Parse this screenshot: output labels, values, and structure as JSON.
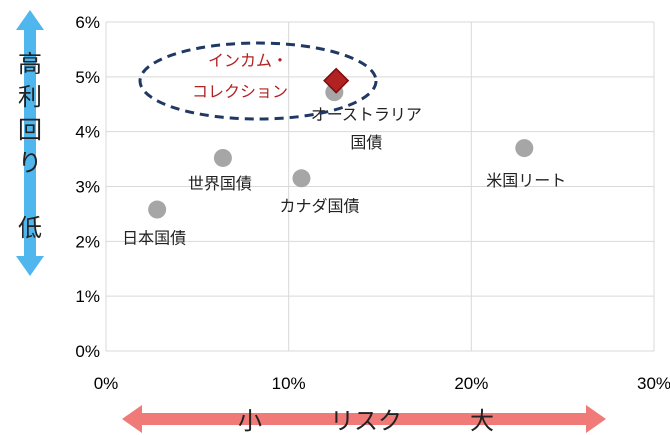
{
  "chart_data": {
    "type": "scatter",
    "title": "",
    "xlim": [
      0,
      30
    ],
    "ylim": [
      0,
      6
    ],
    "x_ticks": [
      "0%",
      "10%",
      "20%",
      "30%"
    ],
    "y_ticks": [
      "0%",
      "1%",
      "2%",
      "3%",
      "4%",
      "5%",
      "6%"
    ],
    "grid": true,
    "points": [
      {
        "label": "日本国債",
        "x": 2.8,
        "y": 2.58
      },
      {
        "label": "世界国債",
        "x": 6.4,
        "y": 3.52
      },
      {
        "label": "カナダ国債",
        "x": 10.7,
        "y": 3.15
      },
      {
        "label": "オーストラリア",
        "label2": "国債",
        "x": 12.5,
        "y": 4.72
      },
      {
        "label": "米国リート",
        "x": 22.9,
        "y": 3.7
      }
    ],
    "highlight": {
      "label": "インカム・",
      "label2": "コレクション",
      "x": 12.6,
      "y": 4.93,
      "color": "#b22222"
    },
    "point_color": "#a6a6a6",
    "ellipse_color": "#1f3864"
  },
  "y_axis_annotation": {
    "top": [
      "高",
      "利",
      "回",
      "り"
    ],
    "bottom": "低",
    "arrow_color": "#4fb6ee"
  },
  "x_axis_annotation": {
    "left": "小",
    "middle": "リスク",
    "right": "大",
    "arrow_color": "#f07a78"
  }
}
